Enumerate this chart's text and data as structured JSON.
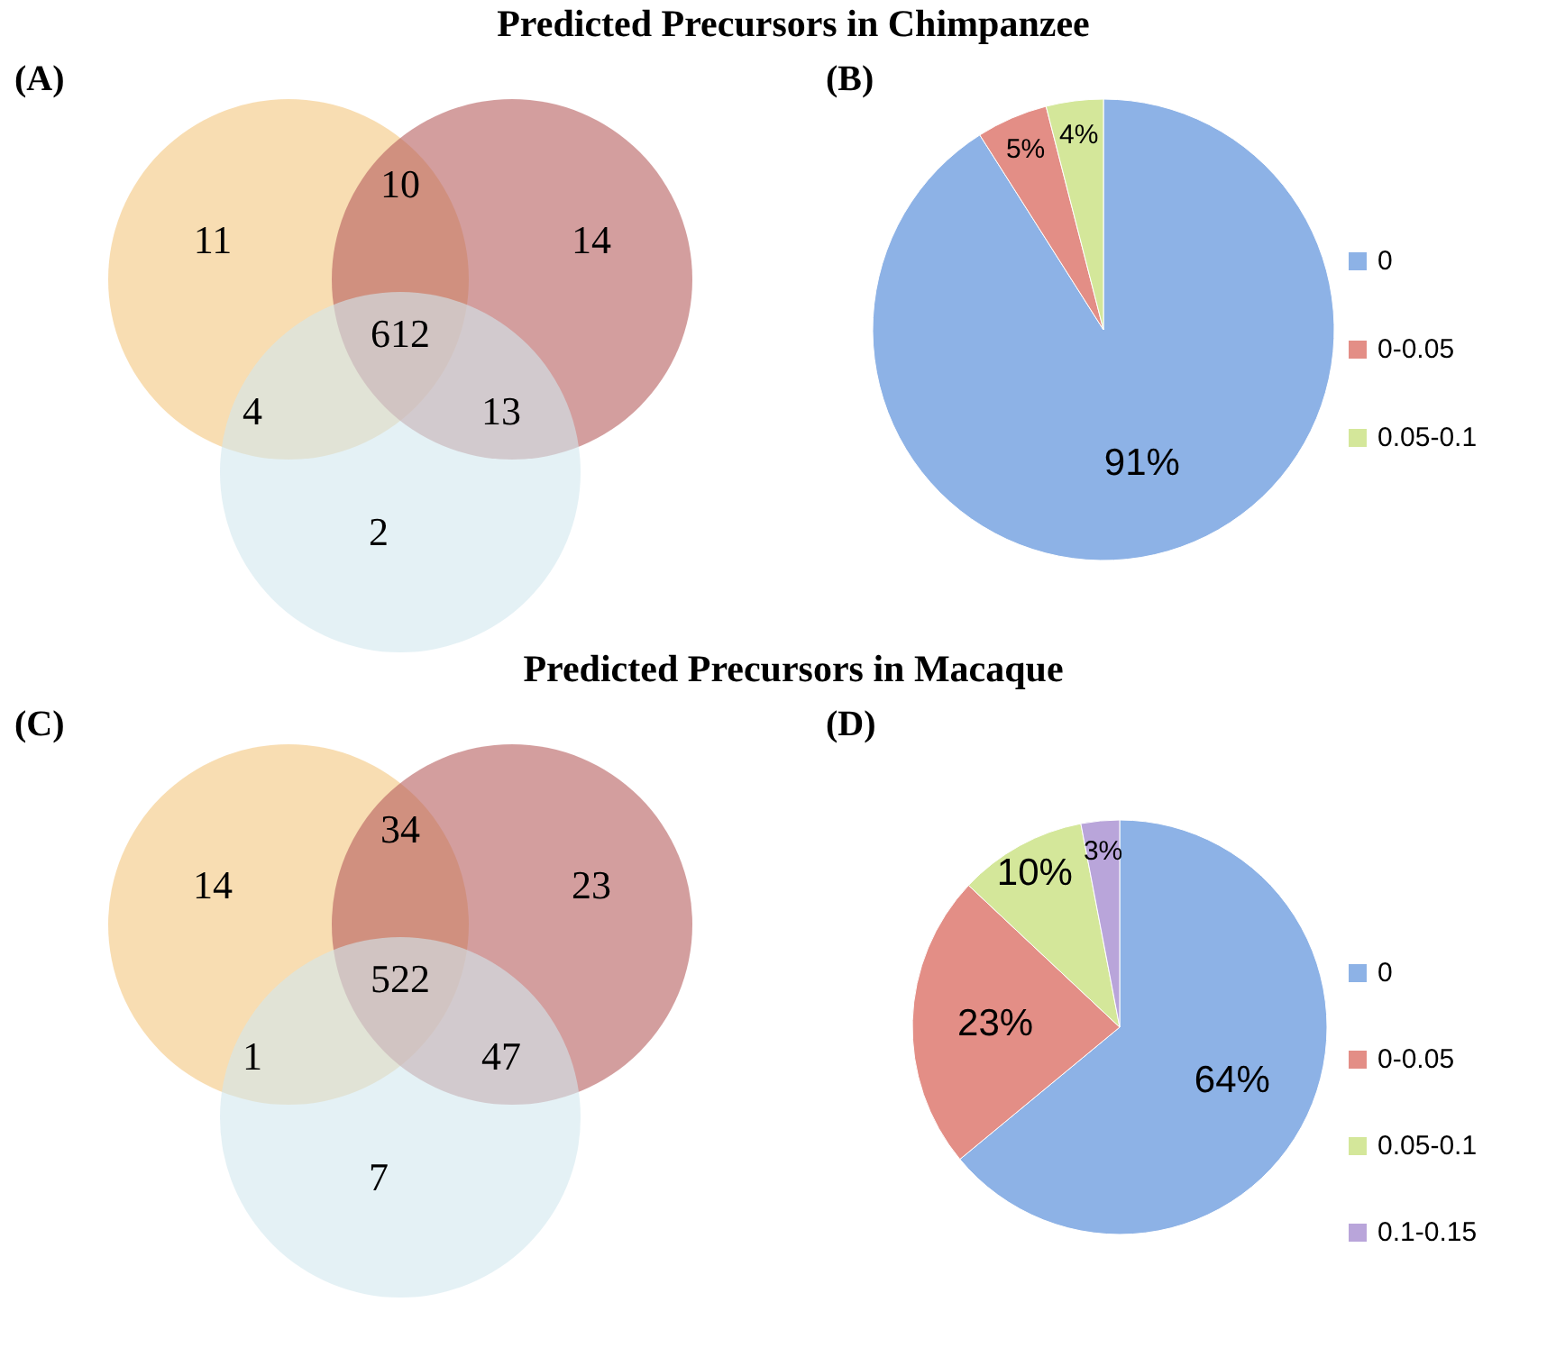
{
  "chart_data": [
    {
      "type": "other",
      "title": "Predicted Precursors in Chimpanzee",
      "annotations": [
        "(A)",
        "11",
        "14",
        "2",
        "10",
        "4",
        "13",
        "612"
      ],
      "colors": [
        "#f4c67e",
        "#b55e5e",
        "#d2e8ee"
      ]
    },
    {
      "type": "pie",
      "annotations": [
        "(B)"
      ],
      "categories": [
        "0",
        "0-0.05",
        "0.05-0.1"
      ],
      "values": [
        91,
        5,
        4
      ],
      "value_labels": [
        "91%",
        "5%",
        "4%"
      ],
      "colors": [
        "#8db2e6",
        "#e38e86",
        "#d4e79a"
      ],
      "legend": "right"
    },
    {
      "type": "other",
      "title": "Predicted Precursors in Macaque",
      "annotations": [
        "(C)",
        "14",
        "23",
        "7",
        "34",
        "1",
        "47",
        "522"
      ],
      "colors": [
        "#f4c67e",
        "#b55e5e",
        "#d2e8ee"
      ]
    },
    {
      "type": "pie",
      "annotations": [
        "(D)"
      ],
      "categories": [
        "0",
        "0-0.05",
        "0.05-0.1",
        "0.1-0.15"
      ],
      "values": [
        64,
        23,
        10,
        3
      ],
      "value_labels": [
        "64%",
        "23%",
        "10%",
        "3%"
      ],
      "colors": [
        "#8db2e6",
        "#e38e86",
        "#d4e79a",
        "#b9a5da"
      ],
      "legend": "right"
    }
  ]
}
